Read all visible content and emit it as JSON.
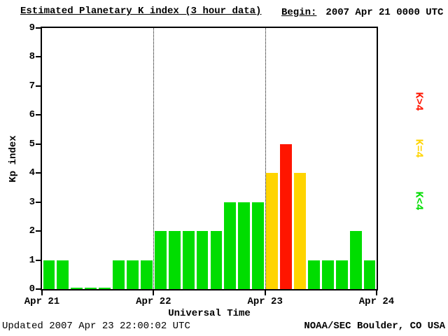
{
  "header": {
    "title": "Estimated Planetary K index (3 hour data)",
    "begin_label": "Begin:",
    "begin_value": "2007 Apr 21 0000 UTC"
  },
  "footer": {
    "updated": "Updated 2007 Apr 23 22:00:02 UTC",
    "credit": "NOAA/SEC Boulder, CO USA"
  },
  "chart_data": {
    "type": "bar",
    "title": "Estimated Planetary K index (3 hour data)",
    "xlabel": "Universal Time",
    "ylabel": "Kp index",
    "ylim": [
      0,
      9
    ],
    "y_ticks": [
      0,
      1,
      2,
      3,
      4,
      5,
      6,
      7,
      8,
      9
    ],
    "x_tick_labels": [
      "Apr 21",
      "Apr 22",
      "Apr 23",
      "Apr 24"
    ],
    "days": 3,
    "slots_per_day": 8,
    "interval_hours": 3,
    "values": [
      1,
      1,
      0,
      0,
      0,
      1,
      1,
      1,
      2,
      2,
      2,
      2,
      2,
      3,
      3,
      3,
      4,
      5,
      4,
      1,
      1,
      1,
      2,
      1
    ],
    "colors": {
      "low": "#00dd00",
      "mid": "#ffd400",
      "high": "#ff1500"
    },
    "legend": [
      {
        "label": "K>4",
        "color": "#ff1500"
      },
      {
        "label": "K=4",
        "color": "#ffd400"
      },
      {
        "label": "K<4",
        "color": "#00dd00"
      }
    ],
    "grid": "dotted vertical day separators",
    "legend_position": "right, rotated"
  }
}
